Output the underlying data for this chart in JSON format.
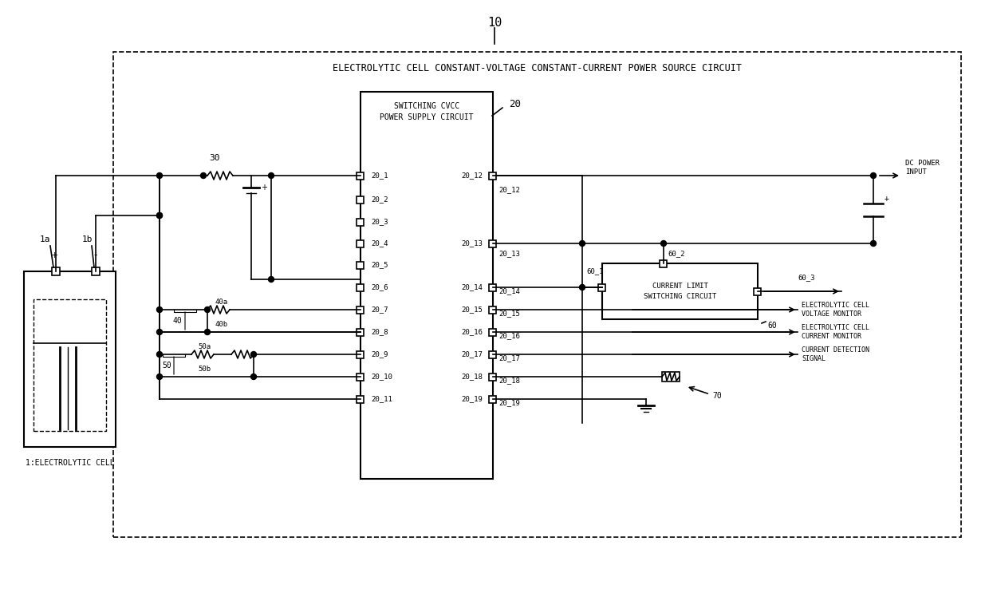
{
  "bg_color": "#ffffff",
  "line_color": "#000000",
  "title_label": "10",
  "outer_box_label": "ELECTROLYTIC CELL CONSTANT-VOLTAGE CONSTANT-CURRENT POWER SOURCE CIRCUIT",
  "switching_box_label": "SWITCHING CVCC\nPOWER SUPPLY CIRCUIT",
  "switching_box_ref": "20",
  "current_limit_box_label": "CURRENT LIMIT\nSWITCHING CIRCUIT",
  "current_limit_box_ref": "60",
  "electrolytic_cell_label": "1:ELECTROLYTIC CELL",
  "port_labels_left": [
    "20_1",
    "20_2",
    "20_3",
    "20_4",
    "20_5",
    "20_6",
    "20_7",
    "20_8",
    "20_9",
    "20_10",
    "20_11"
  ],
  "port_labels_right": [
    "20_12",
    "20_13",
    "20_14",
    "20_15",
    "20_16",
    "20_17",
    "20_18",
    "20_19"
  ],
  "component_labels": {
    "1a": "1a",
    "1b": "1b",
    "30": "30",
    "40": "40",
    "40a": "40a",
    "40b": "40b",
    "50": "50",
    "50a": "50a",
    "50b": "50b",
    "60_1": "60_1",
    "60_2": "60_2",
    "60_3": "60_3",
    "70": "70"
  },
  "annotations": {
    "dc_power_input": "DC POWER\nINPUT",
    "electrolytic_cell_voltage_monitor": "ELECTROLYTIC CELL\nVOLTAGE MONITOR",
    "electrolytic_cell_current_monitor": "ELECTROLYTIC CELL\nCURRENT MONITOR",
    "current_detection_signal": "CURRENT DETECTION\nSIGNAL"
  }
}
